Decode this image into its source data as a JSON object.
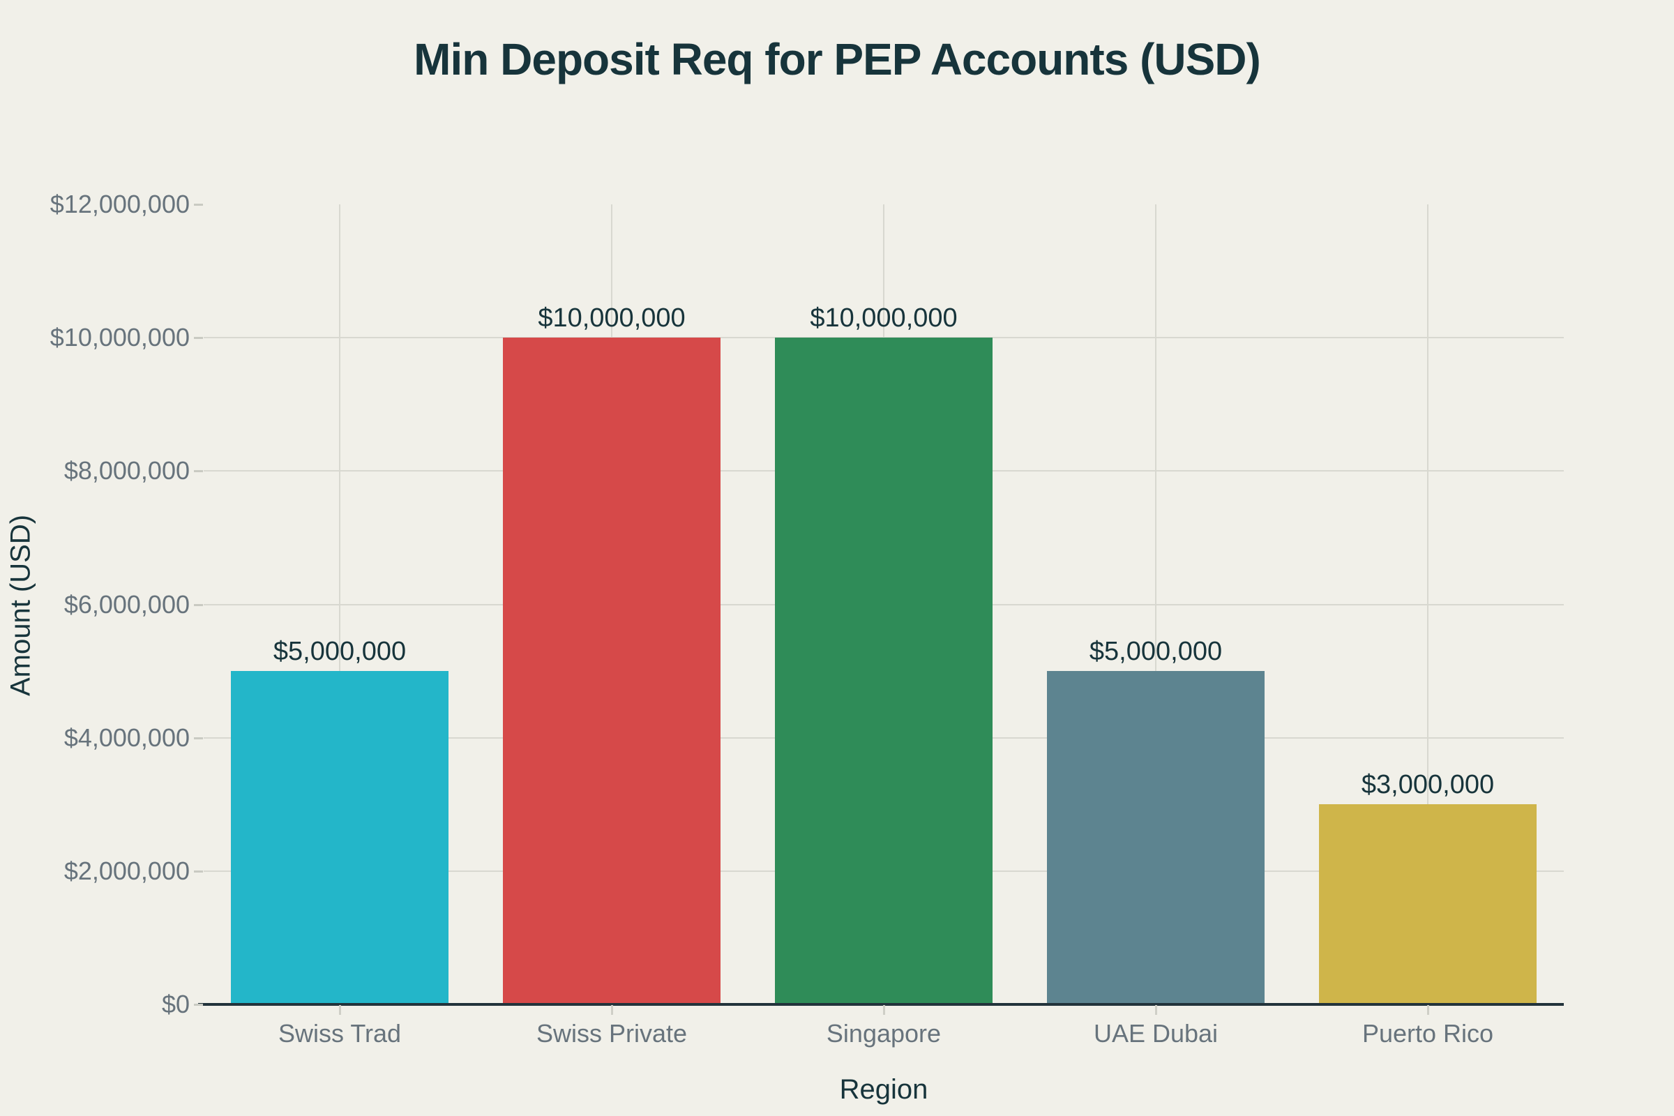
{
  "chart_data": {
    "type": "bar",
    "title": "Min Deposit Req for PEP Accounts (USD)",
    "xlabel": "Region",
    "ylabel": "Amount (USD)",
    "categories": [
      "Swiss Trad",
      "Swiss Private",
      "Singapore",
      "UAE Dubai",
      "Puerto Rico"
    ],
    "values": [
      5000000,
      10000000,
      10000000,
      5000000,
      3000000
    ],
    "value_labels": [
      "$5,000,000",
      "$10,000,000",
      "$10,000,000",
      "$5,000,000",
      "$3,000,000"
    ],
    "bar_colors": [
      "#23b6c9",
      "#d64949",
      "#2f8c58",
      "#5d8490",
      "#cfb54a"
    ],
    "ylim": [
      0,
      12000000
    ],
    "yticks": [
      0,
      2000000,
      4000000,
      6000000,
      8000000,
      10000000,
      12000000
    ],
    "ytick_labels": [
      "$0",
      "$2,000,000",
      "$4,000,000",
      "$6,000,000",
      "$8,000,000",
      "$10,000,000",
      "$12,000,000"
    ],
    "grid": "horizontal gridlines at interior y-ticks, vertical gridlines at category centers, drawn behind bars",
    "legend": "none",
    "colors": {
      "background": "#f1f0e9",
      "title_text": "#17343b",
      "tick_text": "#67737c",
      "gridline": "#d8d8d0",
      "axis_line": "#22333b"
    }
  }
}
